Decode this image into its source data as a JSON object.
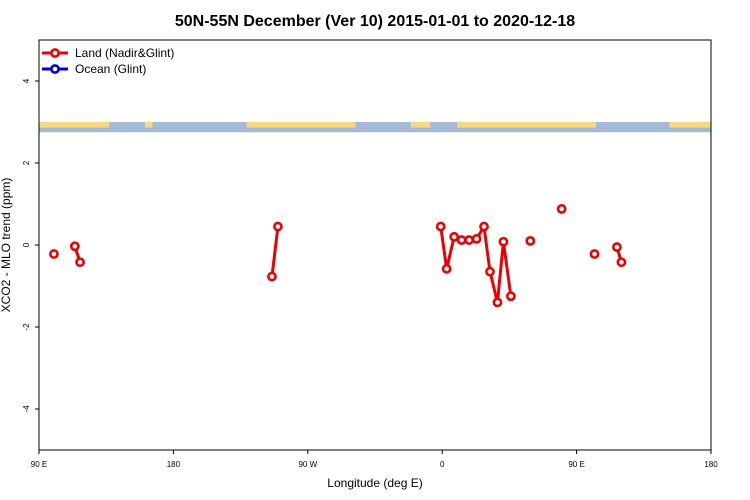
{
  "chart_data": {
    "type": "line",
    "title": "50N-55N December (Ver 10)   2015-01-01 to 2020-12-18",
    "xlabel": "Longitude (deg E)",
    "ylabel": "XCO2 - MLO trend (ppm)",
    "xlim": [
      90,
      540
    ],
    "ylim": [
      -5,
      5
    ],
    "x_ticks": [
      {
        "value": 90,
        "label": "90 E"
      },
      {
        "value": 180,
        "label": "180"
      },
      {
        "value": 270,
        "label": "90 W"
      },
      {
        "value": 360,
        "label": "0"
      },
      {
        "value": 450,
        "label": "90 E"
      },
      {
        "value": 540,
        "label": "180"
      }
    ],
    "y_ticks": [
      {
        "value": -4,
        "label": "-4"
      },
      {
        "value": -2,
        "label": "-2"
      },
      {
        "value": 0,
        "label": "0"
      },
      {
        "value": 2,
        "label": "2"
      },
      {
        "value": 4,
        "label": "4"
      }
    ],
    "legend": {
      "placement": "top-left",
      "entries": [
        {
          "name": "Land (Nadir&Glint)",
          "color": "#ee0000"
        },
        {
          "name": "Ocean (Glint)",
          "color": "#0000ee"
        }
      ]
    },
    "land_strip": {
      "y_range": [
        2.75,
        3.0
      ],
      "ocean_color": "#a5b9d8",
      "land_color": "#f8d878"
    },
    "series": [
      {
        "name": "Land (Nadir&Glint)",
        "color": "#ee0000",
        "segments": [
          [
            [
              100,
              -0.22
            ]
          ],
          [
            [
              114,
              -0.03
            ],
            [
              117.5,
              -0.42
            ]
          ],
          [
            [
              246,
              -0.77
            ],
            [
              250,
              0.45
            ]
          ],
          [
            [
              359,
              0.45
            ],
            [
              363,
              -0.58
            ],
            [
              368,
              0.2
            ],
            [
              373,
              0.12
            ],
            [
              378,
              0.12
            ],
            [
              383,
              0.15
            ],
            [
              388,
              0.45
            ],
            [
              392,
              -0.65
            ],
            [
              397,
              -1.4
            ],
            [
              401,
              0.08
            ],
            [
              406,
              -1.25
            ]
          ],
          [
            [
              419,
              0.1
            ]
          ],
          [
            [
              440,
              0.88
            ]
          ],
          [
            [
              462,
              -0.22
            ]
          ],
          [
            [
              477,
              -0.05
            ],
            [
              480,
              -0.42
            ]
          ]
        ]
      },
      {
        "name": "Ocean (Glint)",
        "color": "#0000ee",
        "segments": []
      }
    ]
  }
}
